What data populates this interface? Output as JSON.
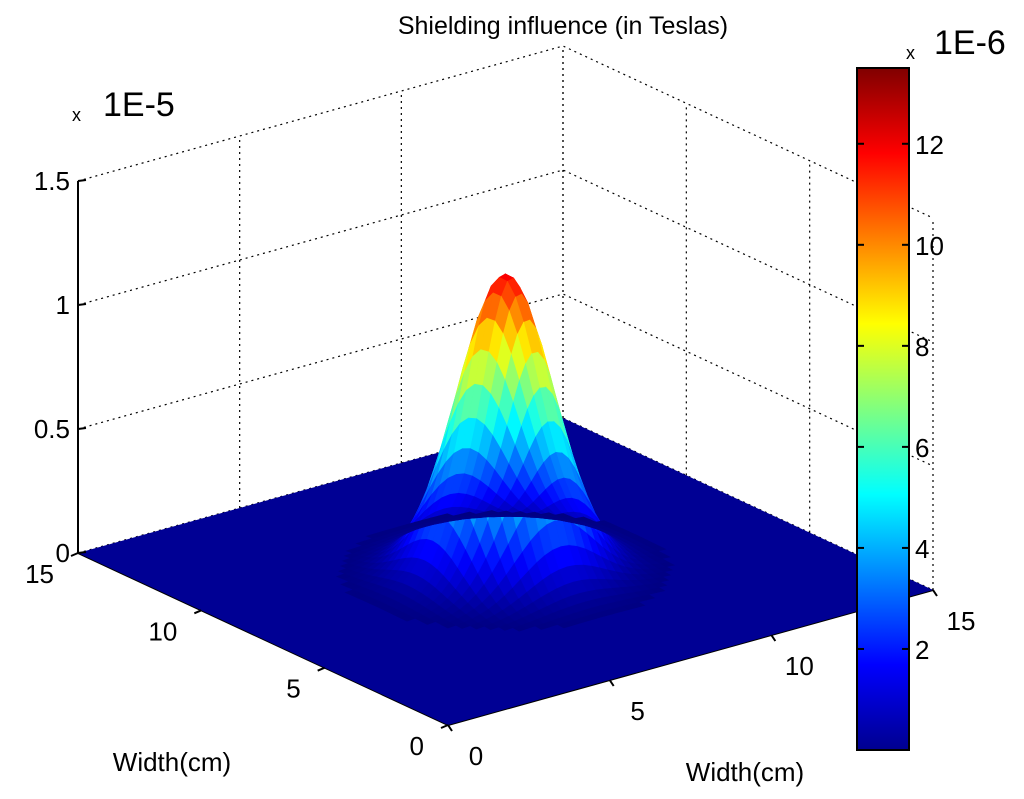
{
  "chart_data": {
    "type": "surface",
    "title": "Shielding influence (in Teslas)",
    "xlabel": "Width(cm)",
    "ylabel": "Width(cm)",
    "zlabel": "",
    "x_range": [
      0,
      15
    ],
    "y_range": [
      0,
      15
    ],
    "z_range": [
      0,
      1.5
    ],
    "x_ticks": [
      "0",
      "5",
      "10",
      "15"
    ],
    "y_ticks": [
      "0",
      "5",
      "10",
      "15"
    ],
    "z_ticks": [
      "0",
      "0.5",
      "1",
      "1.5"
    ],
    "z_multiplier": "1E-5",
    "grid": true,
    "surface": {
      "function": "gaussian",
      "center_x": 7.5,
      "center_y": 7.5,
      "peak_value": 1.2,
      "sigma_cm": 1.2,
      "base_value": 0
    },
    "colorbar": {
      "placement": "right",
      "multiplier": "1E-6",
      "min": 0,
      "max": 13.5,
      "tick_values": [
        2,
        4,
        6,
        8,
        10,
        12
      ],
      "tick_labels": [
        "2",
        "4",
        "6",
        "8",
        "10",
        "12"
      ],
      "colormap": "jet"
    },
    "multiplier_glyph": "x"
  }
}
